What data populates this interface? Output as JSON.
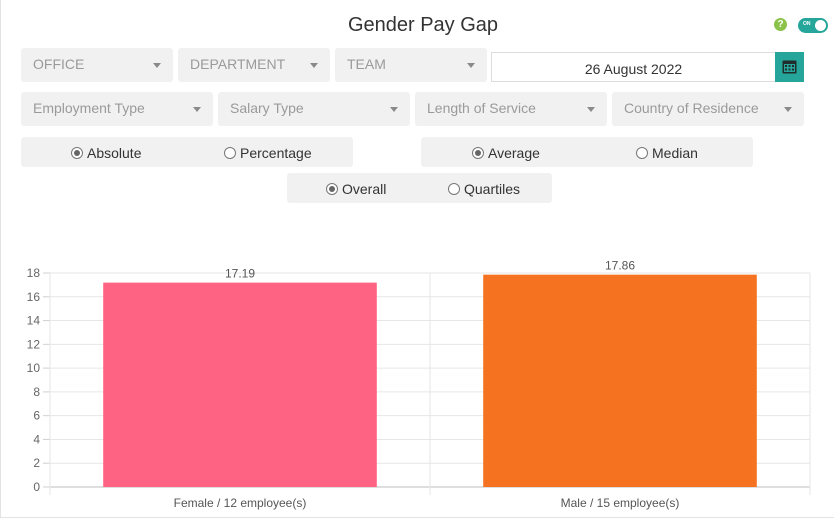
{
  "title": "Gender Pay Gap",
  "toggle": {
    "label": "ON",
    "color": "#26a69a"
  },
  "filters_row1": [
    {
      "label": "OFFICE"
    },
    {
      "label": "DEPARTMENT"
    },
    {
      "label": "TEAM"
    }
  ],
  "date": {
    "value": "26 August 2022"
  },
  "filters_row2": [
    {
      "label": "Employment Type"
    },
    {
      "label": "Salary Type"
    },
    {
      "label": "Length of Service"
    },
    {
      "label": "Country of Residence"
    }
  ],
  "value_mode": {
    "options": [
      "Absolute",
      "Percentage"
    ],
    "selected": "Absolute"
  },
  "stat_mode": {
    "options": [
      "Average",
      "Median"
    ],
    "selected": "Average"
  },
  "scope_mode": {
    "options": [
      "Overall",
      "Quartiles"
    ],
    "selected": "Overall"
  },
  "chart_data": {
    "type": "bar",
    "categories": [
      "Female / 12 employee(s)",
      "Male / 15 employee(s)"
    ],
    "values": [
      17.19,
      17.86
    ],
    "value_labels": [
      "17.19",
      "17.86"
    ],
    "colors": [
      "#ff6384",
      "#f57220"
    ],
    "ylim": [
      0,
      18
    ],
    "yticks": [
      "0",
      "2",
      "4",
      "6",
      "8",
      "10",
      "12",
      "14",
      "16",
      "18"
    ],
    "grid": true
  }
}
